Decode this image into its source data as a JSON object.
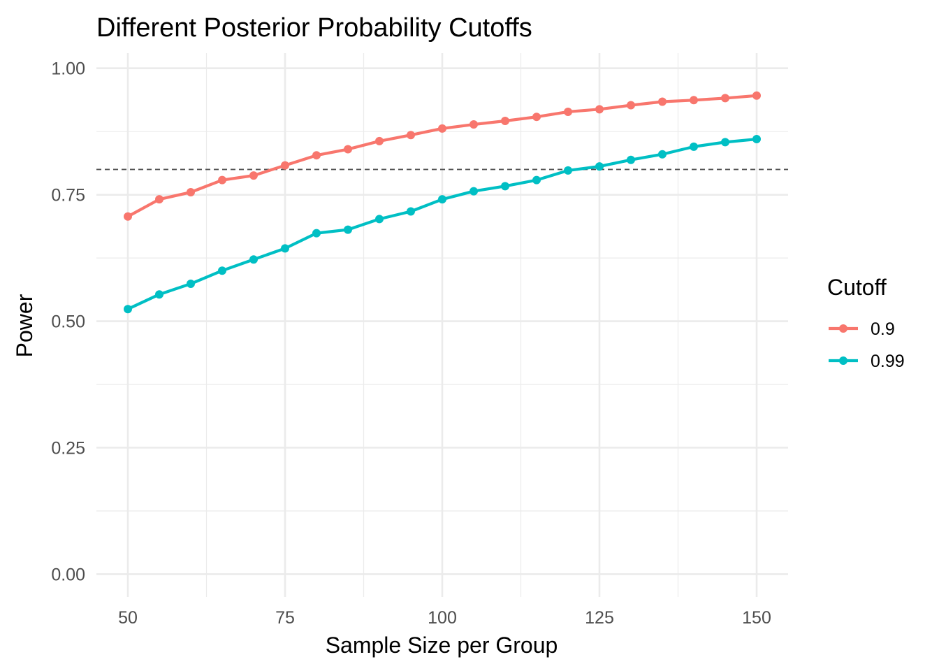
{
  "chart_data": {
    "type": "line",
    "title": "Different Posterior Probability Cutoffs",
    "xlabel": "Sample Size per Group",
    "ylabel": "Power",
    "xlim": [
      45,
      155
    ],
    "ylim": [
      -0.045,
      1.03
    ],
    "x_ticks": [
      50,
      75,
      100,
      125,
      150
    ],
    "x_tick_labels": [
      "50",
      "75",
      "100",
      "125",
      "150"
    ],
    "y_ticks": [
      0,
      0.25,
      0.5,
      0.75,
      1
    ],
    "y_tick_labels": [
      "0.00",
      "0.25",
      "0.50",
      "0.75",
      "1.00"
    ],
    "x_minor": [
      62.5,
      87.5,
      112.5,
      137.5
    ],
    "y_minor": [
      0.125,
      0.375,
      0.625,
      0.875
    ],
    "grid": true,
    "reference_line": {
      "y": 0.8,
      "style": "dashed",
      "color": "#555555"
    },
    "legend": {
      "title": "Cutoff",
      "position": "right"
    },
    "x": [
      50,
      55,
      60,
      65,
      70,
      75,
      80,
      85,
      90,
      95,
      100,
      105,
      110,
      115,
      120,
      125,
      130,
      135,
      140,
      145,
      150
    ],
    "series": [
      {
        "name": "0.9",
        "color": "#F8766D",
        "values": [
          0.707,
          0.741,
          0.755,
          0.779,
          0.788,
          0.808,
          0.828,
          0.84,
          0.856,
          0.868,
          0.881,
          0.889,
          0.896,
          0.904,
          0.914,
          0.919,
          0.927,
          0.934,
          0.937,
          0.941,
          0.946
        ]
      },
      {
        "name": "0.99",
        "color": "#00BFC4",
        "values": [
          0.524,
          0.553,
          0.574,
          0.6,
          0.622,
          0.644,
          0.674,
          0.681,
          0.702,
          0.717,
          0.741,
          0.757,
          0.767,
          0.779,
          0.798,
          0.806,
          0.819,
          0.83,
          0.845,
          0.854,
          0.86
        ]
      }
    ]
  }
}
